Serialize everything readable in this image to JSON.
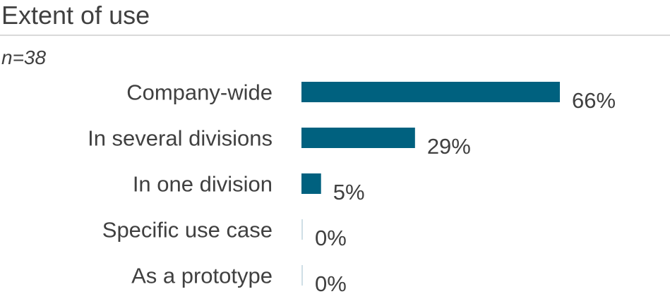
{
  "header": {
    "title": "Extent of use",
    "sample": "n=38"
  },
  "colors": {
    "bar": "#00617f",
    "zero_bar": "#cfdfe6",
    "text": "#404040",
    "rule": "#d9d9d9"
  },
  "chart_data": {
    "type": "bar",
    "orientation": "horizontal",
    "title": "Extent of use",
    "subtitle": "n=38",
    "categories": [
      "Company-wide",
      "In several divisions",
      "In one division",
      "Specific use case",
      "As a prototype"
    ],
    "values": [
      66,
      29,
      5,
      0,
      0
    ],
    "value_labels": [
      "66%",
      "29%",
      "5%",
      "0%",
      "0%"
    ],
    "unit": "%",
    "xlim": [
      0,
      66
    ],
    "grid": false,
    "legend": "none"
  }
}
